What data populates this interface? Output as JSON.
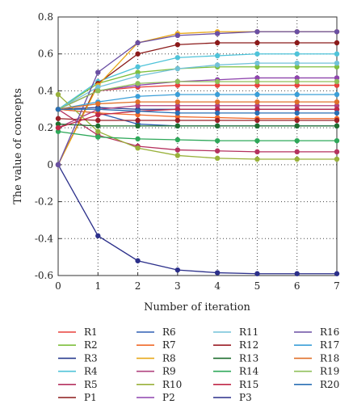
{
  "chart_data": {
    "type": "line",
    "xlabel": "Number of iteration",
    "ylabel": "The value of concepts",
    "xlim": [
      0,
      7
    ],
    "ylim": [
      -0.6,
      0.8
    ],
    "x": [
      0,
      1,
      2,
      3,
      4,
      5,
      6,
      7
    ],
    "x_ticks": [
      "0",
      "1",
      "2",
      "3",
      "4",
      "5",
      "6",
      "7"
    ],
    "y_ticks": [
      "-0.6",
      "-0.4",
      "-0.2",
      "0",
      "0.2",
      "0.4",
      "0.6",
      "0.8"
    ],
    "grid": true,
    "grid_style": "dotted",
    "legend_placement": "bottom",
    "series": [
      {
        "name": "R1",
        "color": "#e8413c",
        "values": [
          0.3,
          0.4,
          0.42,
          0.43,
          0.43,
          0.43,
          0.43,
          0.43
        ]
      },
      {
        "name": "R2",
        "color": "#7fbf3f",
        "values": [
          0.3,
          0.44,
          0.5,
          0.52,
          0.53,
          0.53,
          0.53,
          0.53
        ]
      },
      {
        "name": "R3",
        "color": "#2a3d8f",
        "values": [
          0.3,
          0.31,
          0.3,
          0.3,
          0.3,
          0.3,
          0.3,
          0.3
        ]
      },
      {
        "name": "R4",
        "color": "#4fc3d9",
        "values": [
          0.3,
          0.45,
          0.53,
          0.58,
          0.59,
          0.6,
          0.6,
          0.6
        ]
      },
      {
        "name": "R5",
        "color": "#b5325f",
        "values": [
          0.3,
          0.16,
          0.1,
          0.08,
          0.075,
          0.07,
          0.07,
          0.07
        ]
      },
      {
        "name": "P1",
        "color": "#8b1a1a",
        "values": [
          0.0,
          0.44,
          0.6,
          0.65,
          0.66,
          0.66,
          0.66,
          0.66
        ]
      },
      {
        "name": "R6",
        "color": "#2f5fb3",
        "values": [
          0.3,
          0.28,
          0.22,
          0.21,
          0.21,
          0.21,
          0.21,
          0.21
        ]
      },
      {
        "name": "R7",
        "color": "#f06a2a",
        "values": [
          0.3,
          0.28,
          0.27,
          0.26,
          0.255,
          0.25,
          0.25,
          0.25
        ]
      },
      {
        "name": "R8",
        "color": "#e8a91b",
        "values": [
          0.0,
          0.43,
          0.66,
          0.71,
          0.72,
          0.72,
          0.72,
          0.72
        ]
      },
      {
        "name": "R9",
        "color": "#b0427f",
        "values": [
          0.2,
          0.3,
          0.32,
          0.32,
          0.32,
          0.32,
          0.32,
          0.32
        ]
      },
      {
        "name": "R10",
        "color": "#99b13b",
        "values": [
          0.38,
          0.18,
          0.09,
          0.05,
          0.035,
          0.03,
          0.03,
          0.03
        ]
      },
      {
        "name": "P2",
        "color": "#8e44ad",
        "values": [
          0.3,
          0.4,
          0.43,
          0.45,
          0.46,
          0.47,
          0.47,
          0.47
        ]
      },
      {
        "name": "R11",
        "color": "#72c2d9",
        "values": [
          0.3,
          0.42,
          0.48,
          0.52,
          0.54,
          0.55,
          0.55,
          0.55
        ]
      },
      {
        "name": "R12",
        "color": "#9b1f27",
        "values": [
          0.25,
          0.24,
          0.24,
          0.24,
          0.24,
          0.24,
          0.24,
          0.24
        ]
      },
      {
        "name": "R13",
        "color": "#1f6e2f",
        "values": [
          0.22,
          0.21,
          0.21,
          0.21,
          0.21,
          0.21,
          0.21,
          0.21
        ]
      },
      {
        "name": "R14",
        "color": "#2ea85a",
        "values": [
          0.18,
          0.15,
          0.14,
          0.135,
          0.13,
          0.13,
          0.13,
          0.13
        ]
      },
      {
        "name": "R15",
        "color": "#c02848",
        "values": [
          0.2,
          0.27,
          0.29,
          0.3,
          0.3,
          0.3,
          0.3,
          0.3
        ]
      },
      {
        "name": "P3",
        "color": "#2b2f8a",
        "values": [
          0.0,
          -0.385,
          -0.52,
          -0.57,
          -0.585,
          -0.59,
          -0.59,
          -0.59
        ]
      },
      {
        "name": "R16",
        "color": "#6a4fa3",
        "values": [
          0.0,
          0.5,
          0.66,
          0.7,
          0.71,
          0.72,
          0.72,
          0.72
        ]
      },
      {
        "name": "R17",
        "color": "#3b9fd8",
        "values": [
          0.3,
          0.34,
          0.37,
          0.38,
          0.38,
          0.38,
          0.38,
          0.38
        ]
      },
      {
        "name": "R18",
        "color": "#e0702b",
        "values": [
          0.3,
          0.33,
          0.34,
          0.34,
          0.34,
          0.34,
          0.34,
          0.34
        ]
      },
      {
        "name": "R19",
        "color": "#8fbf5a",
        "values": [
          0.3,
          0.4,
          0.44,
          0.45,
          0.45,
          0.45,
          0.45,
          0.45
        ]
      },
      {
        "name": "R20",
        "color": "#2a6fb4",
        "values": [
          0.3,
          0.3,
          0.29,
          0.28,
          0.28,
          0.28,
          0.28,
          0.28
        ]
      }
    ]
  }
}
